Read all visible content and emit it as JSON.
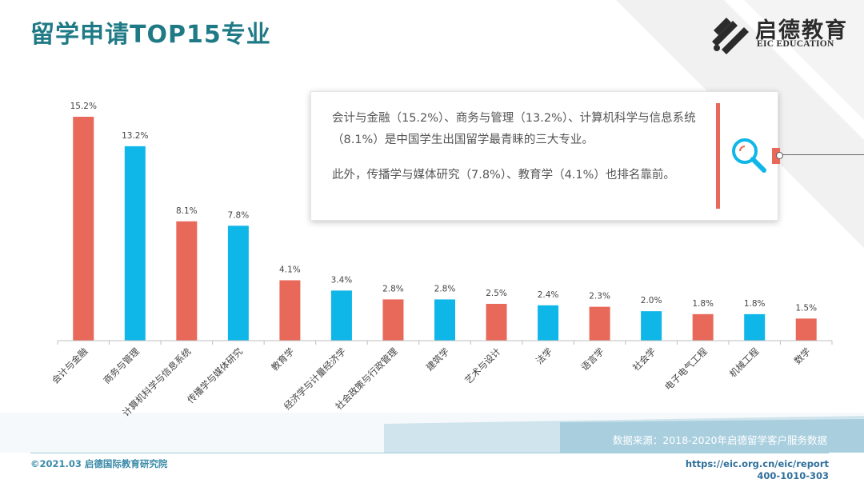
{
  "header": {
    "title": "留学申请TOP15专业",
    "logo_cn": "启德教育",
    "logo_en": "EIC EDUCATION"
  },
  "note": {
    "paragraph1": "会计与金融（15.2%）、商务与管理（13.2%）、计算机科学与信息系统（8.1%）是中国学生出国留学最青睐的三大专业。",
    "paragraph2": "此外，传播学与媒体研究（7.8%）、教育学（4.1%）也排名靠前。",
    "icon": "search-icon"
  },
  "source": "数据来源：2018-2020年启德留学客户服务数据",
  "footer": {
    "copyright": "©2021.03 启德国际教育研究院",
    "url": "https://eic.org.cn/eic/report",
    "phone": "400-1010-303"
  },
  "colors": {
    "red": "#e8695a",
    "blue": "#0fb6e8",
    "title": "#1f7a86"
  },
  "chart_data": {
    "type": "bar",
    "categories": [
      "会计与金融",
      "商务与管理",
      "计算机科学与信息系统",
      "传播学与媒体研究",
      "教育学",
      "经济学与计量经济学",
      "社会政策与行政管理",
      "建筑学",
      "艺术与设计",
      "法学",
      "语言学",
      "社会学",
      "电子电气工程",
      "机械工程",
      "数学"
    ],
    "values": [
      15.2,
      13.2,
      8.1,
      7.8,
      4.1,
      3.4,
      2.8,
      2.8,
      2.5,
      2.4,
      2.3,
      2.0,
      1.8,
      1.8,
      1.5
    ],
    "labels": [
      "15.2%",
      "13.2%",
      "8.1%",
      "7.8%",
      "4.1%",
      "3.4%",
      "2.8%",
      "2.8%",
      "2.5%",
      "2.4%",
      "2.3%",
      "2.0%",
      "1.8%",
      "1.8%",
      "1.5%"
    ],
    "bar_colors": [
      "red",
      "blue",
      "red",
      "blue",
      "red",
      "blue",
      "red",
      "blue",
      "red",
      "blue",
      "red",
      "blue",
      "red",
      "blue",
      "red"
    ],
    "ylim": [
      0,
      15.2
    ],
    "grid": false,
    "legend": "none"
  }
}
